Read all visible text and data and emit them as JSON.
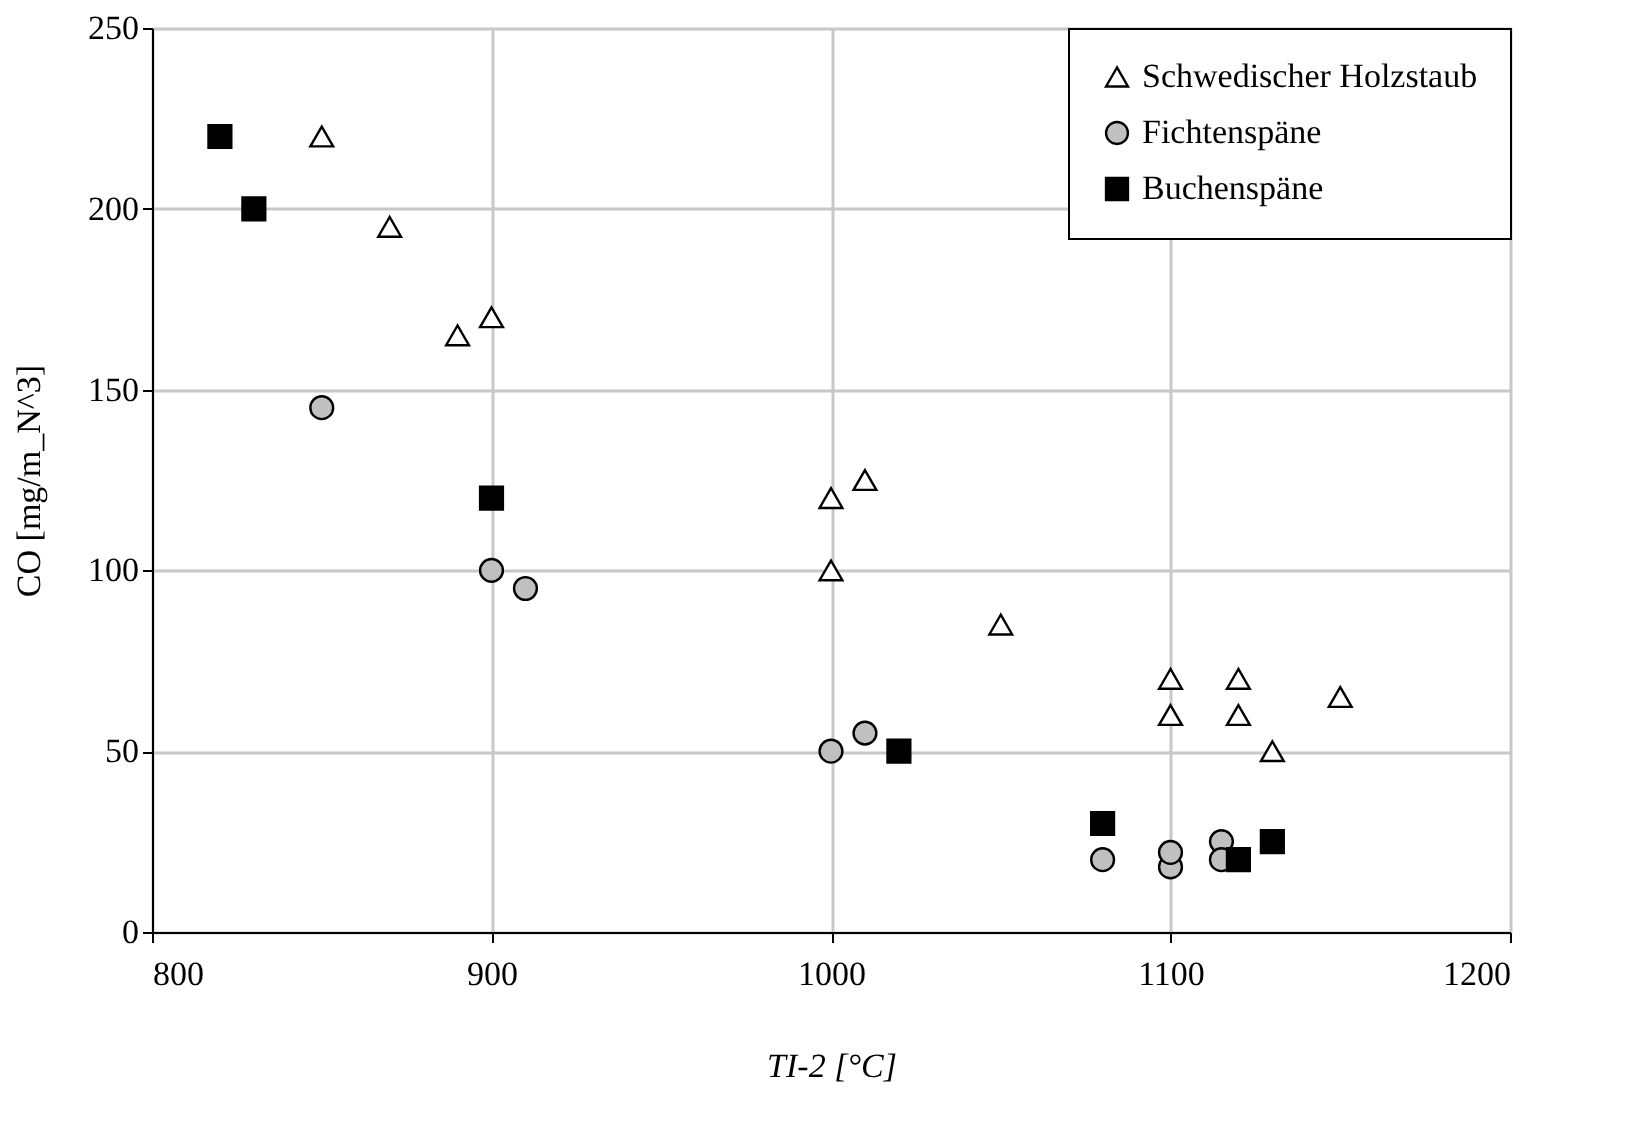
{
  "chart_data": {
    "type": "scatter",
    "xlabel": "TI-2  [°C]",
    "ylabel": "CO [mg/m_N^3]",
    "xlim": [
      800,
      1200
    ],
    "xticks": [
      800,
      900,
      1000,
      1100,
      1200
    ],
    "ylim": [
      0,
      250
    ],
    "yticks": [
      0,
      50,
      100,
      150,
      200,
      250
    ],
    "grid": true,
    "legend": "top right",
    "series": [
      {
        "name": "Schwedischer Holzstaub",
        "color": "#ffffff",
        "marker": "triangle",
        "x": [
          850,
          870,
          890,
          900,
          1000,
          1000,
          1010,
          1050,
          1100,
          1100,
          1120,
          1120,
          1130,
          1150
        ],
        "values": [
          220,
          195,
          165,
          170,
          120,
          100,
          125,
          85,
          70,
          60,
          70,
          60,
          50,
          65
        ]
      },
      {
        "name": "Fichtenspäne",
        "color": "#c0c0c0",
        "marker": "circle",
        "x": [
          850,
          900,
          910,
          1000,
          1010,
          1080,
          1100,
          1100,
          1115,
          1115
        ],
        "values": [
          145,
          100,
          95,
          50,
          55,
          20,
          18,
          22,
          25,
          20
        ]
      },
      {
        "name": "Buchenspäne",
        "color": "#000000",
        "marker": "square",
        "x": [
          820,
          830,
          900,
          1020,
          1080,
          1120,
          1130
        ],
        "values": [
          220,
          200,
          120,
          50,
          30,
          20,
          25
        ]
      }
    ]
  }
}
